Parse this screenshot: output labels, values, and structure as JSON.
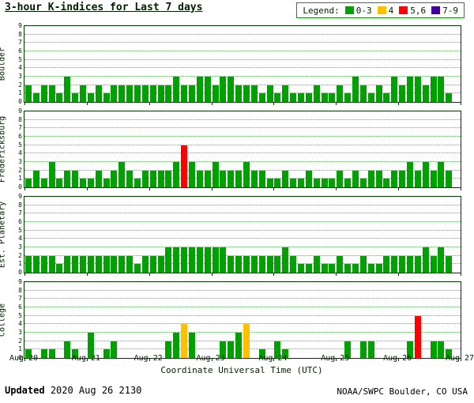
{
  "title": "3-hour K-indices for Last 7 days",
  "legend": {
    "label": "Legend:",
    "items": [
      {
        "label": "0-3",
        "color": "#00A000"
      },
      {
        "label": "4",
        "color": "#FFC000"
      },
      {
        "label": "5,6",
        "color": "#FF0000"
      },
      {
        "label": "7-9",
        "color": "#400099"
      }
    ]
  },
  "footer": {
    "updated_label": "Updated",
    "updated_value": "2020 Aug 26 2130",
    "credit": "NOAA/SWPC Boulder, CO USA"
  },
  "chart_data": {
    "type": "bar",
    "title": "3-hour K-indices for Last 7 days",
    "xlabel": "Coordinate Universal Time (UTC)",
    "ylim": [
      0,
      9
    ],
    "bins_per_day": 8,
    "days": 7,
    "grid": "horizontal-dotted",
    "x_ticks": [
      "Aug 20",
      "Aug 21",
      "Aug 22",
      "Aug 23",
      "Aug 24",
      "Aug 25",
      "Aug 26",
      "Aug 27"
    ],
    "y_ticks": [
      "0",
      "1",
      "2",
      "3",
      "4",
      "5",
      "6",
      "7",
      "8",
      "9"
    ],
    "color_rules": {
      "green_max": 3,
      "yellow_max": 4,
      "red_max": 6,
      "purple_max": 9
    },
    "colors": {
      "green": "#00A000",
      "yellow": "#FFC000",
      "red": "#FF0000",
      "purple": "#400099"
    },
    "panels": [
      {
        "station": "Boulder",
        "values": [
          2,
          1,
          2,
          2,
          1,
          3,
          1,
          2,
          1,
          2,
          1,
          2,
          2,
          2,
          2,
          2,
          2,
          2,
          2,
          3,
          2,
          2,
          3,
          3,
          2,
          3,
          3,
          2,
          2,
          2,
          1,
          2,
          1,
          2,
          1,
          1,
          1,
          2,
          1,
          1,
          2,
          1,
          3,
          2,
          1,
          2,
          1,
          3,
          2,
          3,
          3,
          2,
          3,
          3,
          1
        ]
      },
      {
        "station": "Fredericksburg",
        "values": [
          1,
          2,
          1,
          3,
          1,
          2,
          2,
          1,
          1,
          2,
          1,
          2,
          3,
          2,
          1,
          2,
          2,
          2,
          2,
          3,
          5,
          3,
          2,
          2,
          3,
          2,
          2,
          2,
          3,
          2,
          2,
          1,
          1,
          2,
          1,
          1,
          2,
          1,
          1,
          1,
          2,
          1,
          2,
          1,
          2,
          2,
          1,
          2,
          2,
          3,
          2,
          3,
          2,
          3,
          2
        ]
      },
      {
        "station": "Est. Planetary",
        "values": [
          2,
          2,
          2,
          2,
          1,
          2,
          2,
          2,
          2,
          2,
          2,
          2,
          2,
          2,
          1,
          2,
          2,
          2,
          3,
          3,
          3,
          3,
          3,
          3,
          3,
          3,
          2,
          2,
          2,
          2,
          2,
          2,
          2,
          3,
          2,
          1,
          1,
          2,
          1,
          1,
          2,
          1,
          1,
          2,
          1,
          1,
          2,
          2,
          2,
          2,
          2,
          3,
          2,
          3,
          2
        ]
      },
      {
        "station": "College",
        "values": [
          1,
          0,
          1,
          1,
          0,
          2,
          1,
          0,
          3,
          0,
          1,
          2,
          0,
          0,
          0,
          0,
          0,
          0,
          2,
          3,
          4,
          3,
          0,
          0,
          0,
          2,
          2,
          3,
          4,
          0,
          1,
          0,
          2,
          1,
          0,
          0,
          0,
          0,
          0,
          0,
          0,
          2,
          0,
          2,
          2,
          0,
          0,
          0,
          0,
          2,
          5,
          0,
          2,
          2,
          1
        ]
      }
    ]
  }
}
